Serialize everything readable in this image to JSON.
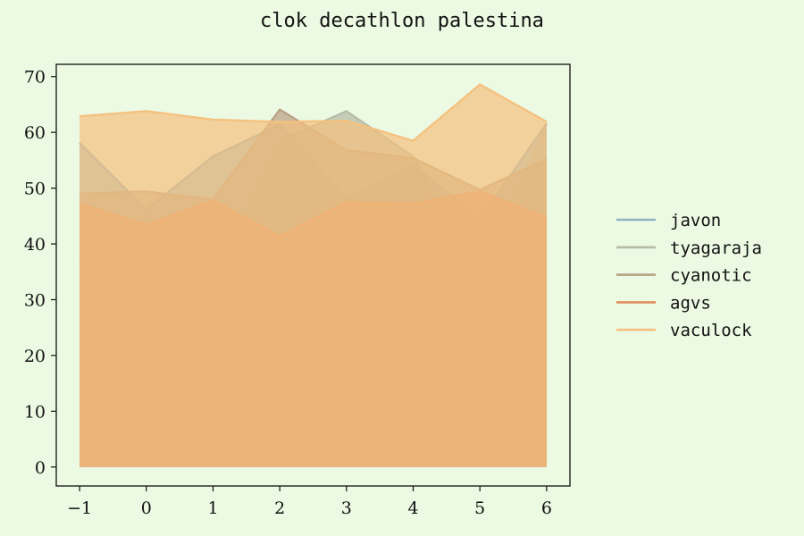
{
  "chart_data": {
    "type": "area",
    "title": "clok decathlon palestina",
    "xlabel": "",
    "ylabel": "",
    "x": [
      -1,
      0,
      1,
      2,
      3,
      4,
      5,
      6
    ],
    "x_tick_labels": [
      "−1",
      "0",
      "1",
      "2",
      "3",
      "4",
      "5",
      "6"
    ],
    "xlim": [
      -1.35,
      6.35
    ],
    "ylim": [
      -3.4,
      72.2
    ],
    "yticks": [
      0,
      10,
      20,
      30,
      40,
      50,
      60,
      70
    ],
    "grid": false,
    "stacked": false,
    "legend_position": "right",
    "series": [
      {
        "name": "javon",
        "color": "#8fb3c4",
        "values": [
          58.1,
          46.2,
          55.7,
          61.4,
          48.3,
          54.1,
          44.5,
          61.6
        ]
      },
      {
        "name": "tyagaraja",
        "color": "#b5bba6",
        "values": [
          36.4,
          42.5,
          32.2,
          58.5,
          63.8,
          55.7,
          34.9,
          61.6
        ]
      },
      {
        "name": "cyanotic",
        "color": "#b9a084",
        "values": [
          49.0,
          49.4,
          48.0,
          64.1,
          56.8,
          55.4,
          49.7,
          55.2
        ]
      },
      {
        "name": "agvs",
        "color": "#e0905f",
        "values": [
          47.2,
          43.4,
          47.8,
          41.3,
          47.5,
          47.2,
          49.4,
          44.7
        ]
      },
      {
        "name": "vaculock",
        "color": "#f5c07d",
        "values": [
          62.9,
          63.8,
          62.3,
          61.9,
          62.1,
          58.5,
          68.6,
          61.9
        ]
      }
    ]
  }
}
